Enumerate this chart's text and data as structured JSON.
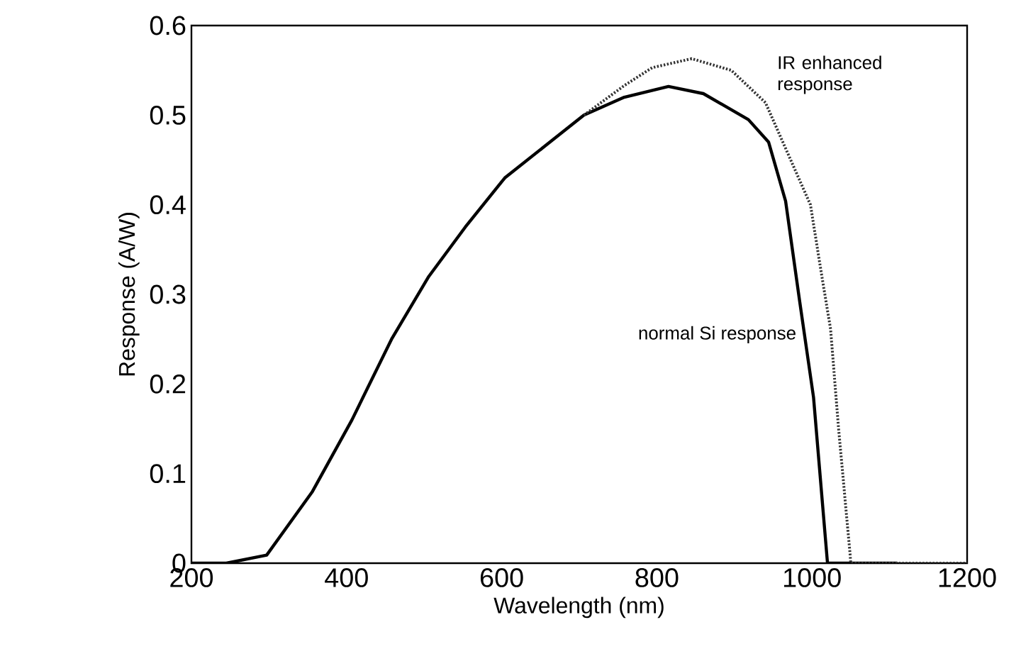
{
  "chart_data": {
    "type": "line",
    "xlabel": "Wavelength (nm)",
    "ylabel": "Response (A/W)",
    "xlim": [
      200,
      1200
    ],
    "ylim": [
      0,
      0.6
    ],
    "xticks": [
      200,
      400,
      600,
      800,
      1000,
      1200
    ],
    "yticks": [
      0,
      0.1,
      0.2,
      0.3,
      0.4,
      0.5,
      0.6
    ],
    "series": [
      {
        "name": "normal Si response",
        "color": "#000000",
        "line_style": "solid",
        "x": [
          200,
          245,
          297,
          356,
          407,
          458,
          506,
          553,
          604,
          655,
          706,
          758,
          815,
          860,
          918,
          944,
          966,
          984,
          1002,
          1020,
          1110
        ],
        "values": [
          0,
          0,
          0.009,
          0.08,
          0.16,
          0.25,
          0.32,
          0.375,
          0.43,
          0.465,
          0.5,
          0.52,
          0.532,
          0.524,
          0.495,
          0.47,
          0.404,
          0.293,
          0.185,
          0,
          0
        ]
      },
      {
        "name": "IR enhanced response",
        "color": "#333333",
        "line_style": "dotted",
        "x": [
          706,
          758,
          794,
          845,
          896,
          940,
          969,
          998,
          1012,
          1024,
          1034,
          1049,
          1050,
          1110,
          1200
        ],
        "values": [
          0.5,
          0.533,
          0.553,
          0.563,
          0.55,
          0.514,
          0.457,
          0.4,
          0.324,
          0.261,
          0.153,
          0.011,
          0,
          0,
          0
        ]
      }
    ]
  }
}
